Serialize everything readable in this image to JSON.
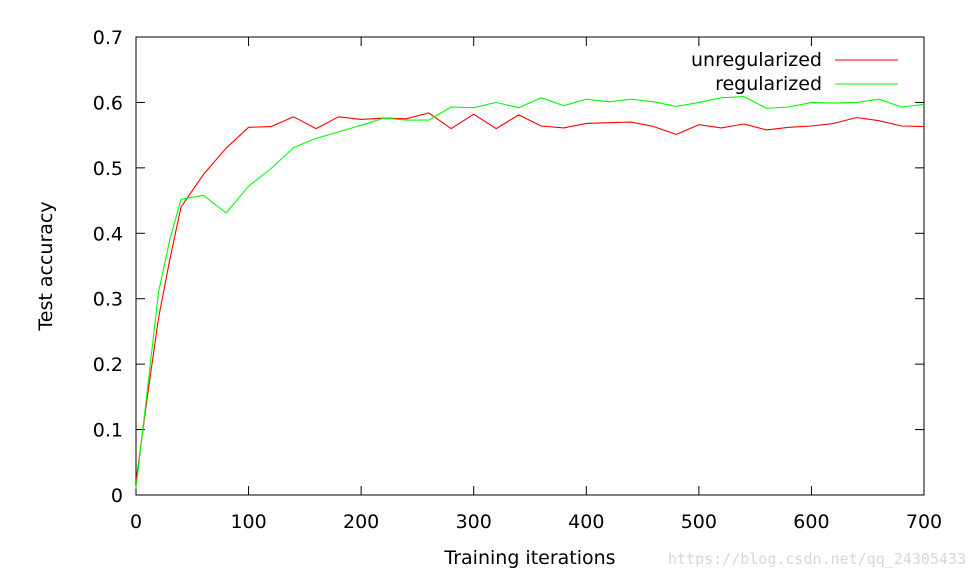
{
  "chart_data": {
    "type": "line",
    "xlabel": "Training iterations",
    "ylabel": "Test accuracy",
    "xlim": [
      0,
      700
    ],
    "ylim": [
      0,
      0.7
    ],
    "xticks": [
      "0",
      "100",
      "200",
      "300",
      "400",
      "500",
      "600",
      "700"
    ],
    "yticks": [
      "0",
      "0.1",
      "0.2",
      "0.3",
      "0.4",
      "0.5",
      "0.6",
      "0.7"
    ],
    "grid": false,
    "legend_position": "top-right",
    "series": [
      {
        "name": "unregularized",
        "color": "#ff0000",
        "x": [
          0,
          10,
          20,
          30,
          40,
          60,
          80,
          100,
          120,
          140,
          160,
          180,
          200,
          220,
          240,
          260,
          280,
          300,
          320,
          340,
          360,
          380,
          400,
          420,
          440,
          460,
          480,
          500,
          520,
          540,
          560,
          580,
          600,
          620,
          640,
          660,
          680,
          700
        ],
        "values": [
          0.02,
          0.15,
          0.27,
          0.36,
          0.44,
          0.49,
          0.53,
          0.562,
          0.563,
          0.578,
          0.56,
          0.578,
          0.574,
          0.576,
          0.575,
          0.584,
          0.56,
          0.582,
          0.56,
          0.581,
          0.564,
          0.561,
          0.568,
          0.569,
          0.57,
          0.563,
          0.551,
          0.566,
          0.561,
          0.567,
          0.558,
          0.562,
          0.564,
          0.568,
          0.577,
          0.572,
          0.564,
          0.563
        ]
      },
      {
        "name": "regularized",
        "color": "#00ff00",
        "x": [
          0,
          10,
          20,
          30,
          40,
          60,
          80,
          100,
          120,
          140,
          160,
          180,
          200,
          220,
          240,
          260,
          280,
          300,
          320,
          340,
          360,
          380,
          400,
          420,
          440,
          460,
          480,
          500,
          520,
          540,
          560,
          580,
          600,
          620,
          640,
          660,
          680,
          700
        ],
        "values": [
          0.01,
          0.16,
          0.31,
          0.39,
          0.452,
          0.458,
          0.431,
          0.472,
          0.499,
          0.531,
          0.545,
          0.555,
          0.565,
          0.576,
          0.573,
          0.573,
          0.593,
          0.592,
          0.6,
          0.592,
          0.607,
          0.595,
          0.605,
          0.601,
          0.605,
          0.601,
          0.594,
          0.6,
          0.607,
          0.609,
          0.591,
          0.593,
          0.6,
          0.599,
          0.6,
          0.605,
          0.593,
          0.597
        ]
      }
    ]
  },
  "watermark": "https://blog.csdn.net/qq_24305433"
}
